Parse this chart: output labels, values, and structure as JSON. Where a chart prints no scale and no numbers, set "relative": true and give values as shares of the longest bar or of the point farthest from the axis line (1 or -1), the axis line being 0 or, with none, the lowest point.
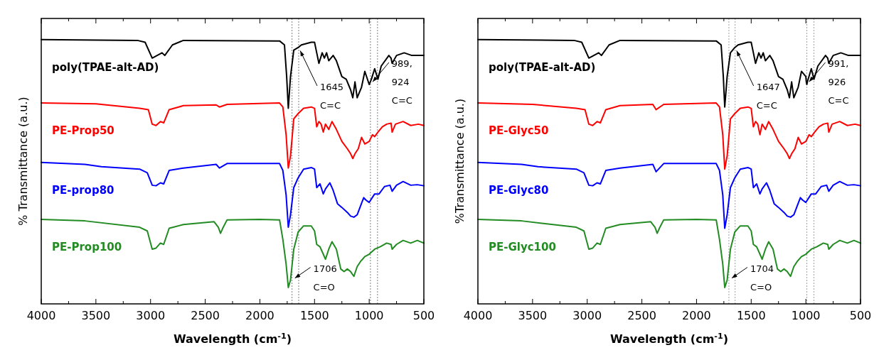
{
  "chart_data": [
    {
      "type": "line",
      "relative": true,
      "xlabel": "Wavelength (cm$^{-1}$)",
      "ylabel": "% Transmittance (a.u.)",
      "xlim": [
        4000,
        500
      ],
      "xticks": [
        4000,
        {
          "value": 3750,
          "label": null
        },
        3500,
        {
          "value": 3250,
          "label": null
        },
        3000,
        {
          "value": 2750,
          "label": null
        },
        2500,
        {
          "value": 2250,
          "label": null
        },
        2000,
        {
          "value": 1750,
          "label": null
        },
        1500,
        {
          "value": 1250,
          "label": null
        },
        1000,
        {
          "value": 750,
          "label": null
        },
        500
      ],
      "series": [
        {
          "name": "poly(TPAE-alt-AD)",
          "color": "#000000",
          "x": [
            4000,
            3120,
            3050,
            2985,
            2940,
            2895,
            2870,
            2800,
            2700,
            1820,
            1775,
            1755,
            1740,
            1720,
            1690,
            1650,
            1620,
            1530,
            1500,
            1480,
            1460,
            1430,
            1410,
            1390,
            1370,
            1330,
            1300,
            1250,
            1210,
            1170,
            1150,
            1130,
            1110,
            1070,
            1040,
            1000,
            980,
            950,
            920,
            890,
            820,
            800,
            790,
            750,
            680,
            610,
            540,
            500
          ],
          "values": [
            1.0,
            0.997,
            0.99,
            0.93,
            0.94,
            0.95,
            0.94,
            0.98,
            0.997,
            0.995,
            0.98,
            0.86,
            0.74,
            0.86,
            0.96,
            0.97,
            0.98,
            0.99,
            0.99,
            0.95,
            0.91,
            0.95,
            0.93,
            0.95,
            0.92,
            0.94,
            0.92,
            0.86,
            0.85,
            0.81,
            0.78,
            0.84,
            0.78,
            0.82,
            0.88,
            0.83,
            0.85,
            0.89,
            0.85,
            0.9,
            0.94,
            0.93,
            0.91,
            0.94,
            0.95,
            0.94,
            0.94,
            0.94
          ]
        },
        {
          "name": "PE-Prop50",
          "color": "#ff0000",
          "x": [
            4000,
            3500,
            3100,
            3020,
            2985,
            2950,
            2910,
            2880,
            2830,
            2700,
            2400,
            2370,
            2300,
            1820,
            1790,
            1760,
            1740,
            1720,
            1690,
            1650,
            1600,
            1530,
            1500,
            1480,
            1460,
            1440,
            1420,
            1400,
            1370,
            1340,
            1300,
            1250,
            1200,
            1170,
            1150,
            1130,
            1100,
            1070,
            1040,
            1000,
            970,
            950,
            920,
            880,
            840,
            800,
            790,
            760,
            690,
            620,
            550,
            500
          ],
          "values": [
            0.76,
            0.757,
            0.74,
            0.735,
            0.68,
            0.675,
            0.69,
            0.685,
            0.735,
            0.75,
            0.753,
            0.745,
            0.755,
            0.76,
            0.745,
            0.64,
            0.514,
            0.56,
            0.7,
            0.72,
            0.74,
            0.745,
            0.74,
            0.67,
            0.69,
            0.68,
            0.65,
            0.68,
            0.66,
            0.69,
            0.66,
            0.615,
            0.587,
            0.568,
            0.55,
            0.568,
            0.587,
            0.63,
            0.605,
            0.615,
            0.64,
            0.633,
            0.65,
            0.67,
            0.68,
            0.684,
            0.65,
            0.68,
            0.69,
            0.675,
            0.68,
            0.675
          ]
        },
        {
          "name": "PE-prop80",
          "color": "#0000ff",
          "x": [
            4000,
            3600,
            3450,
            3100,
            3030,
            2985,
            2950,
            2910,
            2880,
            2830,
            2700,
            2400,
            2370,
            2300,
            1820,
            1790,
            1760,
            1740,
            1720,
            1690,
            1650,
            1600,
            1530,
            1500,
            1480,
            1450,
            1420,
            1400,
            1360,
            1330,
            1290,
            1250,
            1200,
            1170,
            1140,
            1110,
            1080,
            1050,
            1030,
            1000,
            950,
            910,
            860,
            810,
            790,
            750,
            690,
            620,
            560,
            500
          ],
          "values": [
            0.535,
            0.528,
            0.519,
            0.51,
            0.496,
            0.449,
            0.447,
            0.458,
            0.454,
            0.505,
            0.514,
            0.528,
            0.514,
            0.531,
            0.531,
            0.505,
            0.412,
            0.29,
            0.337,
            0.44,
            0.477,
            0.51,
            0.516,
            0.51,
            0.44,
            0.454,
            0.416,
            0.435,
            0.458,
            0.43,
            0.379,
            0.365,
            0.346,
            0.332,
            0.328,
            0.337,
            0.37,
            0.402,
            0.393,
            0.384,
            0.416,
            0.416,
            0.444,
            0.449,
            0.426,
            0.449,
            0.463,
            0.449,
            0.451,
            0.447
          ]
        },
        {
          "name": "PE-Prop100",
          "color": "#228b22",
          "x": [
            4000,
            3600,
            3100,
            3030,
            2985,
            2950,
            2910,
            2880,
            2830,
            2700,
            2420,
            2380,
            2360,
            2340,
            2300,
            2000,
            1820,
            1790,
            1760,
            1740,
            1720,
            1690,
            1650,
            1600,
            1530,
            1500,
            1480,
            1450,
            1420,
            1400,
            1370,
            1340,
            1300,
            1260,
            1230,
            1200,
            1170,
            1140,
            1110,
            1080,
            1040,
            1000,
            950,
            900,
            840,
            800,
            790,
            750,
            690,
            620,
            560,
            500
          ],
          "values": [
            0.32,
            0.314,
            0.29,
            0.276,
            0.207,
            0.211,
            0.23,
            0.225,
            0.286,
            0.3,
            0.311,
            0.29,
            0.267,
            0.286,
            0.318,
            0.32,
            0.318,
            0.244,
            0.15,
            0.062,
            0.09,
            0.207,
            0.272,
            0.295,
            0.295,
            0.276,
            0.225,
            0.216,
            0.188,
            0.169,
            0.207,
            0.235,
            0.207,
            0.132,
            0.122,
            0.132,
            0.122,
            0.104,
            0.141,
            0.16,
            0.179,
            0.188,
            0.207,
            0.216,
            0.23,
            0.225,
            0.207,
            0.225,
            0.24,
            0.23,
            0.24,
            0.23
          ]
        }
      ],
      "ref_lines": [
        {
          "axis": "x",
          "value": 1706,
          "color": "#808080",
          "line_style": "dotted"
        },
        {
          "axis": "x",
          "value": 1645,
          "color": "#808080",
          "line_style": "dotted"
        },
        {
          "axis": "x",
          "value": 989,
          "color": "#808080",
          "line_style": "dotted"
        },
        {
          "axis": "x",
          "value": 924,
          "color": "#808080",
          "line_style": "dotted"
        }
      ],
      "annotations": [
        {
          "text": "1645\nC=C",
          "x": 1645,
          "y": 0.97
        },
        {
          "text": "989,\n924\nC=C",
          "x": 989,
          "y": 0.83
        },
        {
          "text": "1706\nC=O",
          "x": 1706,
          "y": 0.09
        }
      ]
    },
    {
      "type": "line",
      "relative": true,
      "xlabel": "Wavelength (cm$^{-1}$)",
      "ylabel": "%Transmittance (a.u.)",
      "xlim": [
        4000,
        500
      ],
      "xticks": [
        4000,
        {
          "value": 3750,
          "label": null
        },
        3500,
        {
          "value": 3250,
          "label": null
        },
        3000,
        {
          "value": 2750,
          "label": null
        },
        2500,
        {
          "value": 2250,
          "label": null
        },
        2000,
        {
          "value": 1750,
          "label": null
        },
        1500,
        {
          "value": 1250,
          "label": null
        },
        1000,
        {
          "value": 750,
          "label": null
        },
        500
      ],
      "series": [
        {
          "name": "poly(TPAE-alt-AD)",
          "color": "#000000",
          "x": [
            4000,
            3120,
            3050,
            2985,
            2940,
            2895,
            2870,
            2800,
            2700,
            1820,
            1775,
            1755,
            1742,
            1720,
            1690,
            1650,
            1620,
            1530,
            1500,
            1480,
            1460,
            1430,
            1410,
            1390,
            1370,
            1330,
            1300,
            1250,
            1210,
            1170,
            1150,
            1130,
            1110,
            1070,
            1040,
            1000,
            996,
            991,
            986,
            950,
            926,
            890,
            820,
            800,
            790,
            750,
            680,
            610,
            540,
            500
          ],
          "values": [
            1.0,
            0.997,
            0.99,
            0.93,
            0.94,
            0.95,
            0.94,
            0.98,
            0.997,
            0.995,
            0.98,
            0.86,
            0.745,
            0.86,
            0.95,
            0.97,
            0.98,
            0.99,
            0.99,
            0.95,
            0.91,
            0.95,
            0.93,
            0.95,
            0.92,
            0.94,
            0.92,
            0.86,
            0.85,
            0.81,
            0.78,
            0.84,
            0.78,
            0.82,
            0.88,
            0.86,
            0.84,
            0.83,
            0.84,
            0.89,
            0.85,
            0.9,
            0.94,
            0.93,
            0.91,
            0.94,
            0.95,
            0.94,
            0.94,
            0.94
          ]
        },
        {
          "name": "PE-Glyc50",
          "color": "#ff0000",
          "x": [
            4000,
            3500,
            3100,
            3020,
            2985,
            2950,
            2910,
            2880,
            2830,
            2700,
            2400,
            2370,
            2300,
            1820,
            1790,
            1760,
            1742,
            1720,
            1690,
            1650,
            1600,
            1530,
            1500,
            1480,
            1460,
            1440,
            1420,
            1400,
            1370,
            1340,
            1300,
            1250,
            1200,
            1170,
            1150,
            1130,
            1100,
            1070,
            1040,
            1000,
            970,
            950,
            920,
            880,
            840,
            800,
            790,
            760,
            690,
            620,
            550,
            500
          ],
          "values": [
            0.76,
            0.755,
            0.74,
            0.735,
            0.68,
            0.675,
            0.69,
            0.685,
            0.735,
            0.75,
            0.755,
            0.735,
            0.755,
            0.76,
            0.745,
            0.64,
            0.51,
            0.56,
            0.7,
            0.72,
            0.74,
            0.745,
            0.74,
            0.67,
            0.69,
            0.68,
            0.64,
            0.68,
            0.66,
            0.69,
            0.66,
            0.615,
            0.587,
            0.568,
            0.55,
            0.568,
            0.587,
            0.63,
            0.605,
            0.615,
            0.64,
            0.633,
            0.65,
            0.67,
            0.68,
            0.684,
            0.65,
            0.68,
            0.69,
            0.675,
            0.68,
            0.675
          ]
        },
        {
          "name": "PE-Glyc80",
          "color": "#0000ff",
          "x": [
            4000,
            3600,
            3450,
            3100,
            3030,
            2985,
            2950,
            2910,
            2880,
            2830,
            2700,
            2400,
            2370,
            2300,
            1820,
            1790,
            1760,
            1742,
            1720,
            1690,
            1650,
            1600,
            1530,
            1500,
            1480,
            1450,
            1420,
            1400,
            1360,
            1330,
            1290,
            1250,
            1200,
            1170,
            1140,
            1110,
            1080,
            1050,
            1030,
            1000,
            950,
            910,
            860,
            810,
            790,
            750,
            690,
            620,
            560,
            500
          ],
          "values": [
            0.535,
            0.528,
            0.519,
            0.51,
            0.496,
            0.449,
            0.447,
            0.458,
            0.454,
            0.505,
            0.514,
            0.528,
            0.5,
            0.531,
            0.531,
            0.505,
            0.412,
            0.286,
            0.337,
            0.44,
            0.477,
            0.51,
            0.516,
            0.51,
            0.44,
            0.454,
            0.416,
            0.435,
            0.458,
            0.43,
            0.379,
            0.365,
            0.346,
            0.332,
            0.328,
            0.337,
            0.37,
            0.402,
            0.393,
            0.384,
            0.416,
            0.416,
            0.444,
            0.449,
            0.426,
            0.449,
            0.463,
            0.449,
            0.451,
            0.447
          ]
        },
        {
          "name": "PE-Glyc100",
          "color": "#228b22",
          "x": [
            4000,
            3600,
            3100,
            3030,
            2985,
            2950,
            2910,
            2880,
            2830,
            2700,
            2420,
            2380,
            2360,
            2340,
            2300,
            2000,
            1820,
            1790,
            1760,
            1742,
            1720,
            1690,
            1650,
            1600,
            1530,
            1500,
            1480,
            1450,
            1420,
            1400,
            1370,
            1340,
            1300,
            1260,
            1230,
            1200,
            1170,
            1140,
            1110,
            1080,
            1040,
            1000,
            950,
            900,
            840,
            800,
            790,
            750,
            690,
            620,
            560,
            500
          ],
          "values": [
            0.32,
            0.314,
            0.29,
            0.276,
            0.207,
            0.211,
            0.23,
            0.225,
            0.286,
            0.3,
            0.311,
            0.29,
            0.267,
            0.286,
            0.318,
            0.32,
            0.318,
            0.244,
            0.15,
            0.062,
            0.09,
            0.207,
            0.272,
            0.295,
            0.295,
            0.276,
            0.225,
            0.216,
            0.188,
            0.169,
            0.207,
            0.235,
            0.207,
            0.132,
            0.122,
            0.132,
            0.122,
            0.104,
            0.141,
            0.16,
            0.179,
            0.188,
            0.207,
            0.216,
            0.23,
            0.225,
            0.207,
            0.225,
            0.24,
            0.23,
            0.24,
            0.23
          ]
        }
      ],
      "ref_lines": [
        {
          "axis": "x",
          "value": 1704,
          "color": "#a0a0a0",
          "line_style": "dotted"
        },
        {
          "axis": "x",
          "value": 1647,
          "color": "#a0a0a0",
          "line_style": "dotted"
        },
        {
          "axis": "x",
          "value": 991,
          "color": "#a0a0a0",
          "line_style": "dotted"
        },
        {
          "axis": "x",
          "value": 926,
          "color": "#a0a0a0",
          "line_style": "dotted"
        }
      ],
      "annotations": [
        {
          "text": "1647\nC=C",
          "x": 1647,
          "y": 0.97
        },
        {
          "text": "991,\n926\nC=C",
          "x": 991,
          "y": 0.83
        },
        {
          "text": "1704\nC=O",
          "x": 1704,
          "y": 0.09
        }
      ]
    }
  ]
}
